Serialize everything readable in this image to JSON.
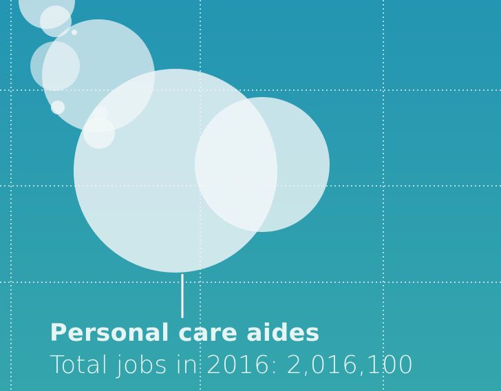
{
  "background": {
    "top_color": "#2495b2",
    "bottom_color": "#35a5ac"
  },
  "chart_data": {
    "type": "bubble",
    "title": "",
    "xlabel": "",
    "ylabel": "",
    "grid": true,
    "highlight": {
      "name": "Personal care aides",
      "metric_label": "Total jobs in 2016:",
      "value_text": "2,016,100",
      "value": 2016100
    },
    "series": [
      {
        "name": "Personal care aides",
        "color": "#f2f7f8",
        "opacity": 0.82,
        "size_value": 2016100
      },
      {
        "name": "",
        "color": "#f2f7f8",
        "opacity": 0.78,
        "size_value": 0
      },
      {
        "name": "",
        "color": "#f2f7f8",
        "opacity": 0.7,
        "size_value": 0
      },
      {
        "name": "",
        "color": "#f2f7f8",
        "opacity": 0.6,
        "size_value": 0
      },
      {
        "name": "",
        "color": "#f2f7f8",
        "opacity": 0.8,
        "size_value": 0
      },
      {
        "name": "",
        "color": "#f2f7f8",
        "opacity": 0.72,
        "size_value": 0
      },
      {
        "name": "",
        "color": "#f2f7f8",
        "opacity": 0.7,
        "size_value": 0
      },
      {
        "name": "",
        "color": "#f2f7f8",
        "opacity": 0.7,
        "size_value": 0
      },
      {
        "name": "",
        "color": "#f2f7f8",
        "opacity": 0.82,
        "size_value": 0
      },
      {
        "name": "",
        "color": "#f2f7f8",
        "opacity": 0.8,
        "size_value": 0
      }
    ]
  }
}
